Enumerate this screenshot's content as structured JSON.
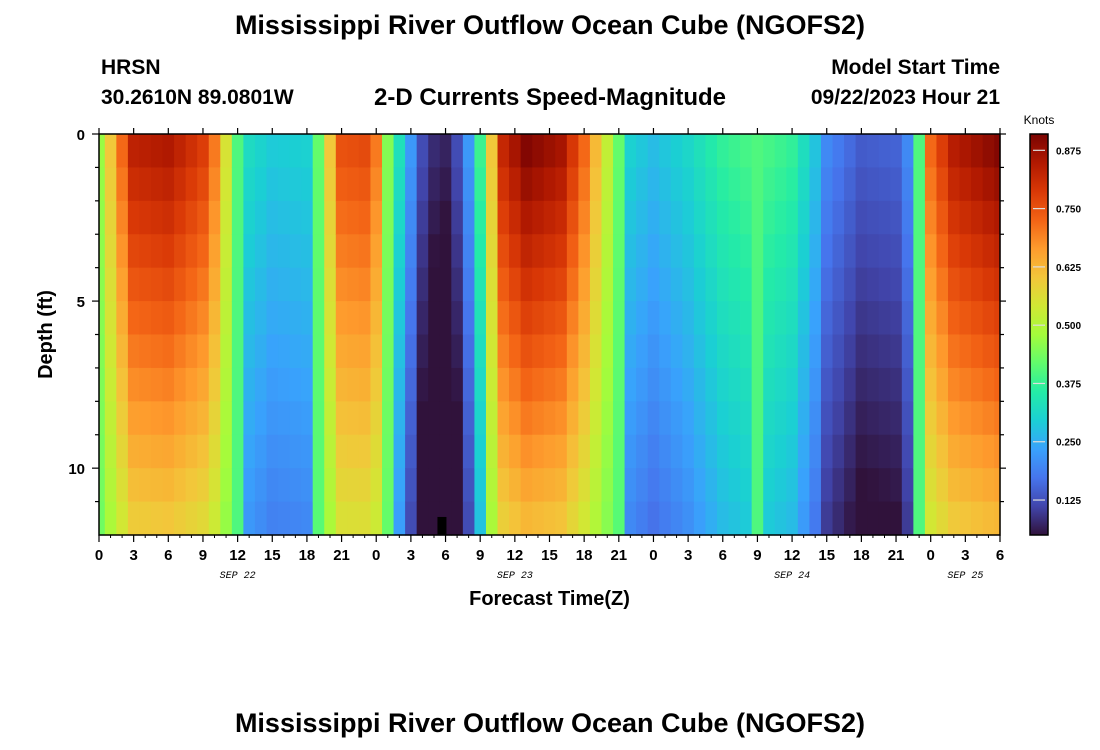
{
  "header": {
    "title": "Mississippi River Outflow Ocean Cube (NGOFS2)",
    "station_name": "HRSN",
    "station_coords": "30.2610N  89.0801W",
    "plot_title": "2-D Currents Speed-Magnitude",
    "start_label": "Model Start Time",
    "start_value": "09/22/2023 Hour 21"
  },
  "footer": {
    "title": "Mississippi River Outflow Ocean Cube (NGOFS2)"
  },
  "chart_data": {
    "type": "heatmap",
    "title": "2-D Currents Speed-Magnitude",
    "xlabel": "Forecast Time(Z)",
    "ylabel": "Depth (ft)",
    "x_unit": "hours from 09/22 00Z",
    "xlim": [
      0,
      78
    ],
    "ylim": [
      0,
      12
    ],
    "y_inverted": true,
    "x_tick_labels": [
      "0",
      "3",
      "6",
      "9",
      "12",
      "15",
      "18",
      "21",
      "0",
      "3",
      "6",
      "9",
      "12",
      "15",
      "18",
      "21",
      "0",
      "3",
      "6",
      "9",
      "12",
      "15",
      "18",
      "21",
      "0",
      "3",
      "6"
    ],
    "y_ticks": [
      0,
      5,
      10
    ],
    "y_tick_labels": [
      "0",
      "5",
      "10"
    ],
    "date_labels": [
      {
        "label": "SEP 22",
        "at_hour": 12
      },
      {
        "label": "SEP 23",
        "at_hour": 36
      },
      {
        "label": "SEP 24",
        "at_hour": 60
      },
      {
        "label": "SEP 25",
        "at_hour": 75
      }
    ],
    "colorbar": {
      "unit": "Knots",
      "min": 0.05,
      "max": 0.91,
      "tick_values": [
        0.125,
        0.25,
        0.375,
        0.5,
        0.625,
        0.75,
        0.875
      ],
      "tick_labels": [
        "0.125",
        "0.250",
        "0.375",
        "0.500",
        "0.625",
        "0.750",
        "0.875"
      ]
    },
    "depth_levels": [
      0.5,
      1.5,
      2.5,
      3.5,
      4.5,
      5.5,
      6.5,
      7.5,
      8.5,
      9.5,
      10.5,
      11.5
    ],
    "surface_speed_profile": [
      {
        "hour": 0,
        "speed": 0.47
      },
      {
        "hour": 1,
        "speed": 0.6
      },
      {
        "hour": 2,
        "speed": 0.72
      },
      {
        "hour": 3,
        "speed": 0.83
      },
      {
        "hour": 6,
        "speed": 0.85
      },
      {
        "hour": 9,
        "speed": 0.78
      },
      {
        "hour": 10,
        "speed": 0.7
      },
      {
        "hour": 11,
        "speed": 0.55
      },
      {
        "hour": 12,
        "speed": 0.4
      },
      {
        "hour": 13,
        "speed": 0.32
      },
      {
        "hour": 15,
        "speed": 0.29
      },
      {
        "hour": 18,
        "speed": 0.3
      },
      {
        "hour": 19,
        "speed": 0.42
      },
      {
        "hour": 20,
        "speed": 0.6
      },
      {
        "hour": 21,
        "speed": 0.75
      },
      {
        "hour": 23,
        "speed": 0.76
      },
      {
        "hour": 24,
        "speed": 0.7
      },
      {
        "hour": 25,
        "speed": 0.45
      },
      {
        "hour": 26,
        "speed": 0.33
      },
      {
        "hour": 27,
        "speed": 0.22
      },
      {
        "hour": 28,
        "speed": 0.12
      },
      {
        "hour": 29,
        "speed": 0.08
      },
      {
        "hour": 30,
        "speed": 0.07
      },
      {
        "hour": 31,
        "speed": 0.12
      },
      {
        "hour": 32,
        "speed": 0.22
      },
      {
        "hour": 33,
        "speed": 0.38
      },
      {
        "hour": 35,
        "speed": 0.82
      },
      {
        "hour": 37,
        "speed": 0.9
      },
      {
        "hour": 40,
        "speed": 0.86
      },
      {
        "hour": 42,
        "speed": 0.72
      },
      {
        "hour": 45,
        "speed": 0.42
      },
      {
        "hour": 46,
        "speed": 0.3
      },
      {
        "hour": 48,
        "speed": 0.27
      },
      {
        "hour": 51,
        "speed": 0.31
      },
      {
        "hour": 54,
        "speed": 0.37
      },
      {
        "hour": 57,
        "speed": 0.4
      },
      {
        "hour": 60,
        "speed": 0.37
      },
      {
        "hour": 62,
        "speed": 0.28
      },
      {
        "hour": 63,
        "speed": 0.2
      },
      {
        "hour": 66,
        "speed": 0.14
      },
      {
        "hour": 69,
        "speed": 0.15
      },
      {
        "hour": 70,
        "speed": 0.2
      },
      {
        "hour": 71,
        "speed": 0.4
      },
      {
        "hour": 72,
        "speed": 0.72
      },
      {
        "hour": 74,
        "speed": 0.84
      },
      {
        "hour": 78,
        "speed": 0.9
      }
    ],
    "grid": false
  },
  "style": {
    "colormap": [
      "#30123b",
      "#4145ab",
      "#4675ed",
      "#39a2fc",
      "#1bcfd4",
      "#24eca6",
      "#61fc6c",
      "#a4fc3b",
      "#d1e834",
      "#f3c63a",
      "#fe9b2d",
      "#f36315",
      "#d93806",
      "#b11901",
      "#7a0402"
    ],
    "nodata_color": "#000000"
  }
}
